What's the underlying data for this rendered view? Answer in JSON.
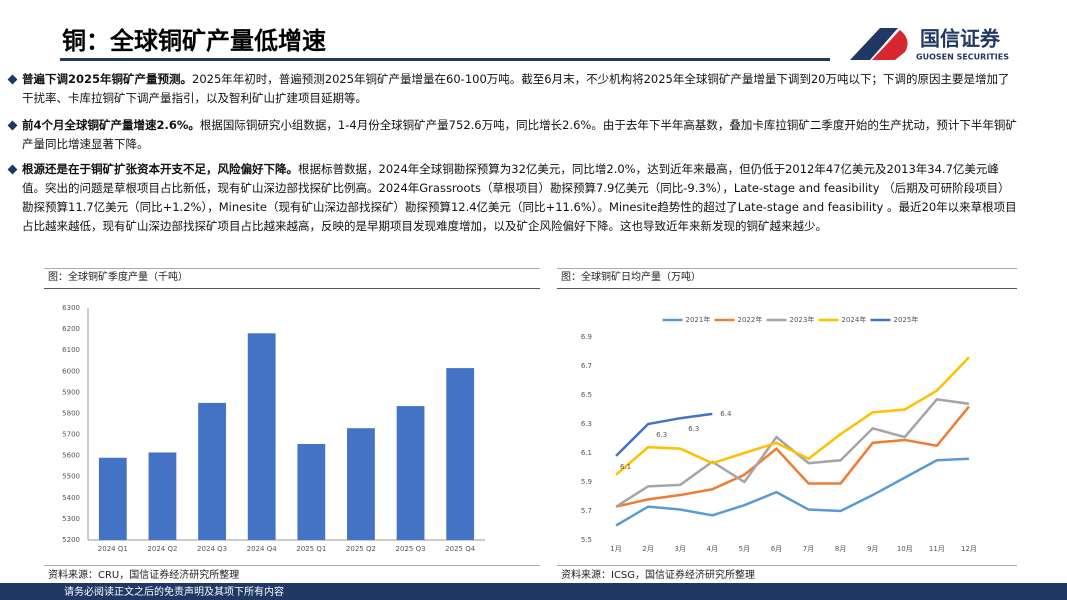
{
  "header": {
    "title": "铜：全球铜矿产量低增速",
    "logo_cn": "国信证券",
    "logo_en": "GUOSEN SECURITIES"
  },
  "bullets": [
    {
      "lead": "普遍下调2025年铜矿产量预测。",
      "text": "2025年年初时，普遍预测2025年铜矿产量增量在60-100万吨。截至6月末，不少机构将2025年全球铜矿产量增量下调到20万吨以下；下调的原因主要是增加了干扰率、卡库拉铜矿下调产量指引，以及智利矿山扩建项目延期等。"
    },
    {
      "lead": "前4个月全球铜矿产量增速2.6%。",
      "text": "根据国际铜研究小组数据，1-4月份全球铜矿产量752.6万吨，同比增长2.6%。由于去年下半年高基数，叠加卡库拉铜矿二季度开始的生产扰动，预计下半年铜矿产量同比增速显著下降。"
    },
    {
      "lead": "根源还是在于铜矿扩张资本开支不足，风险偏好下降。",
      "text": "根据标普数据，2024年全球铜勘探预算为32亿美元，同比增2.0%，达到近年来最高，但仍低于2012年47亿美元及2013年34.7亿美元峰值。突出的问题是草根项目占比新低，现有矿山深边部找探矿比例高。2024年Grassroots（草根项目）勘探预算7.9亿美元（同比-9.3%），Late-stage and feasibility （后期及可研阶段项目）勘探预算11.7亿美元（同比+1.2%），Minesite（现有矿山深边部找探矿）勘探预算12.4亿美元（同比+11.6%）。Minesite趋势性的超过了Late-stage and feasibility 。最近20年以来草根项目占比越来越低，现有矿山深边部找探矿项目占比越来越高，反映的是早期项目发现难度增加，以及矿企风险偏好下降。这也导致近年来新发现的铜矿越来越少。"
    }
  ],
  "chart_data": [
    {
      "type": "bar",
      "title": "图：全球铜矿季度产量（千吨）",
      "source": "资料来源：CRU，国信证券经济研究所整理",
      "categories": [
        "2024 Q1",
        "2024 Q2",
        "2024 Q3",
        "2024 Q4",
        "2025 Q1",
        "2025 Q2",
        "2025 Q3",
        "2025 Q4"
      ],
      "values": [
        5590,
        5615,
        5850,
        6180,
        5655,
        5730,
        5835,
        6015
      ],
      "color": "#4472c4",
      "ylim": [
        5200,
        6300
      ],
      "yticks": [
        5200,
        5300,
        5400,
        5500,
        5600,
        5700,
        5800,
        5900,
        6000,
        6100,
        6200,
        6300
      ],
      "grid": false
    },
    {
      "type": "line",
      "title": "图：全球铜矿日均产量（万吨）",
      "source": "资料来源：ICSG，国信证券经济研究所整理",
      "categories": [
        "1月",
        "2月",
        "3月",
        "4月",
        "5月",
        "6月",
        "7月",
        "8月",
        "9月",
        "10月",
        "11月",
        "12月"
      ],
      "series": [
        {
          "name": "2021年",
          "color": "#5b9bd5",
          "values": [
            5.6,
            5.73,
            5.71,
            5.67,
            5.74,
            5.83,
            5.71,
            5.7,
            5.81,
            5.93,
            6.05,
            6.06
          ]
        },
        {
          "name": "2022年",
          "color": "#ed7d31",
          "values": [
            5.73,
            5.78,
            5.81,
            5.85,
            5.95,
            6.13,
            5.89,
            5.89,
            6.17,
            6.19,
            6.15,
            6.42
          ]
        },
        {
          "name": "2023年",
          "color": "#a5a5a5",
          "values": [
            5.73,
            5.87,
            5.88,
            6.04,
            5.9,
            6.21,
            6.03,
            6.05,
            6.27,
            6.21,
            6.47,
            6.44
          ]
        },
        {
          "name": "2024年",
          "color": "#ffc000",
          "values": [
            5.95,
            6.14,
            6.13,
            6.03,
            6.1,
            6.17,
            6.06,
            6.23,
            6.38,
            6.4,
            6.53,
            6.76
          ]
        },
        {
          "name": "2025年",
          "color": "#4472c4",
          "values": [
            6.08,
            6.3,
            6.34,
            6.37,
            null,
            null,
            null,
            null,
            null,
            null,
            null,
            null
          ],
          "value_labels": [
            "6.1",
            "6.3",
            "6.3",
            "6.4",
            null,
            null,
            null,
            null,
            null,
            null,
            null,
            null
          ]
        }
      ],
      "ylim": [
        5.5,
        6.9
      ],
      "yticks": [
        5.5,
        5.7,
        5.9,
        6.1,
        6.3,
        6.5,
        6.7,
        6.9
      ],
      "grid": false,
      "legend": "top"
    }
  ],
  "footer": "请务必阅读正文之后的免责声明及其项下所有内容"
}
